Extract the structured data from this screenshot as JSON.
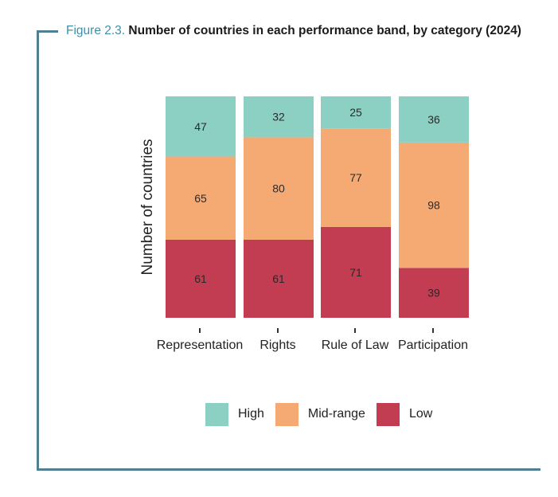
{
  "figure": {
    "label": "Figure 2.3.",
    "title": "Number of countries in each performance band, by category (2024)"
  },
  "colors": {
    "frame": "#4f7f92",
    "figure_label": "#3e8fa8",
    "High": "#8ccfc3",
    "Mid-range": "#f5aa74",
    "Low": "#c23c52"
  },
  "chart_data": {
    "type": "bar",
    "stacked": true,
    "title": "Number of countries in each performance band, by category (2024)",
    "xlabel": "",
    "ylabel": "Number of countries",
    "categories": [
      "Representation",
      "Rights",
      "Rule of Law",
      "Participation"
    ],
    "series": [
      {
        "name": "Low",
        "values": [
          61,
          61,
          71,
          39
        ]
      },
      {
        "name": "Mid-range",
        "values": [
          65,
          80,
          77,
          98
        ]
      },
      {
        "name": "High",
        "values": [
          47,
          32,
          25,
          36
        ]
      }
    ],
    "ylim": [
      0,
      173
    ],
    "grid": false,
    "legend": {
      "placement": "bottom",
      "entries": [
        "High",
        "Mid-range",
        "Low"
      ]
    }
  }
}
